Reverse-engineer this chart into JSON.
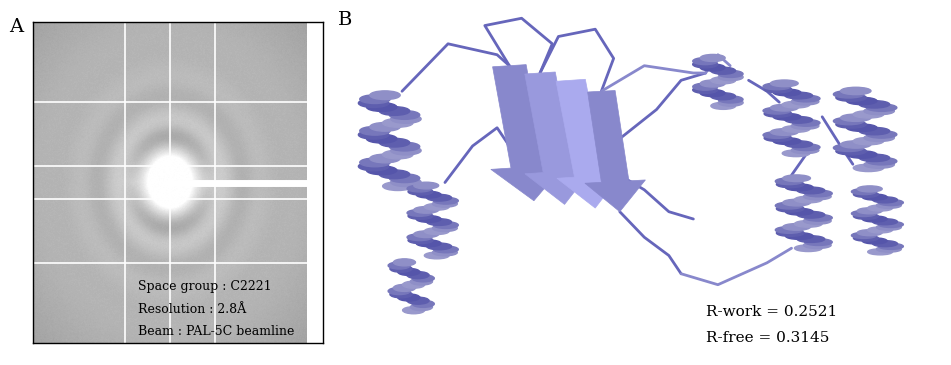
{
  "panel_A_label": "A",
  "panel_B_label": "B",
  "space_group_text": "Space group : C2221",
  "resolution_text": "Resolution : 2.8Å",
  "beam_text": "Beam : PAL-5C beamline",
  "rwork_text": "R-work = 0.2521",
  "rfree_text": "R-free = 0.3145",
  "bg_color": "#ffffff",
  "panel_A_box_color": "#000000",
  "grid_color": "#ffffff",
  "text_color": "#000000",
  "annotation_fontsize": 9,
  "label_fontsize": 14,
  "rwork_rfree_fontsize": 11,
  "figure_width": 9.51,
  "figure_height": 3.65,
  "dpi": 100
}
